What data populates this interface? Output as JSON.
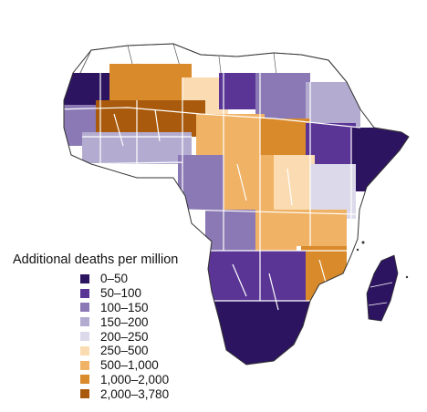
{
  "map": {
    "region": "Africa",
    "legend": {
      "title": "Additional deaths per million",
      "classes": [
        {
          "label": "0–50",
          "color": "#2d1460"
        },
        {
          "label": "50–100",
          "color": "#5a3596"
        },
        {
          "label": "100–150",
          "color": "#8a79b4"
        },
        {
          "label": "150–200",
          "color": "#b3acd0"
        },
        {
          "label": "200–250",
          "color": "#dcdaea"
        },
        {
          "label": "250–500",
          "color": "#fbdcb2"
        },
        {
          "label": "500–1,000",
          "color": "#f0b264"
        },
        {
          "label": "1,000–2,000",
          "color": "#d98a2a"
        },
        {
          "label": "2,000–3,780",
          "color": "#a95a0c"
        }
      ]
    },
    "colors": {
      "background_land": "#ffffff",
      "border": "#ffffff",
      "outline": "#333333",
      "water": "#ffffff"
    }
  }
}
